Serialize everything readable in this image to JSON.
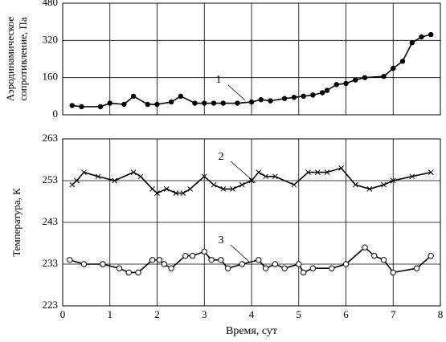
{
  "chart_data": [
    {
      "type": "line",
      "ylabel": [
        "Аэродинамическое",
        "сопротивление, Па"
      ],
      "xlim": [
        0,
        8
      ],
      "ylim": [
        0,
        480
      ],
      "yticks": [
        0,
        160,
        320,
        480
      ],
      "grid": true,
      "series": [
        {
          "name": "1",
          "color": "#000",
          "marker": "dot",
          "x": [
            0.2,
            0.4,
            0.8,
            1.0,
            1.3,
            1.5,
            1.8,
            2.0,
            2.3,
            2.5,
            2.8,
            3.0,
            3.2,
            3.4,
            3.7,
            4.0,
            4.2,
            4.4,
            4.7,
            4.9,
            5.1,
            5.3,
            5.5,
            5.6,
            5.8,
            6.0,
            6.2,
            6.4,
            6.8,
            7.0,
            7.2,
            7.4,
            7.6,
            7.8
          ],
          "values": [
            40,
            35,
            35,
            50,
            45,
            80,
            45,
            45,
            55,
            80,
            50,
            50,
            50,
            50,
            50,
            55,
            65,
            60,
            70,
            75,
            80,
            85,
            95,
            105,
            130,
            135,
            150,
            160,
            165,
            200,
            230,
            310,
            335,
            345
          ]
        }
      ]
    },
    {
      "type": "line",
      "ylabel": "Температура, К",
      "xlabel": "Время, сут",
      "xlim": [
        0,
        8
      ],
      "xticks": [
        0,
        1,
        2,
        3,
        4,
        5,
        6,
        7,
        8
      ],
      "ylim": [
        223,
        263
      ],
      "yticks": [
        223,
        233,
        243,
        253,
        263
      ],
      "grid": true,
      "series": [
        {
          "name": "2",
          "color": "#000",
          "marker": "x",
          "x": [
            0.2,
            0.3,
            0.45,
            0.75,
            1.1,
            1.5,
            1.65,
            1.9,
            2.0,
            2.2,
            2.4,
            2.55,
            2.7,
            3.0,
            3.2,
            3.4,
            3.6,
            3.8,
            4.0,
            4.15,
            4.3,
            4.5,
            4.9,
            5.2,
            5.4,
            5.6,
            5.9,
            6.2,
            6.5,
            6.8,
            7.0,
            7.4,
            7.8
          ],
          "values": [
            252,
            253,
            255,
            254,
            253,
            255,
            254,
            251,
            250,
            251,
            250,
            250,
            251,
            254,
            252,
            251,
            251,
            252,
            253,
            255,
            254,
            254,
            252,
            255,
            255,
            255,
            256,
            252,
            251,
            252,
            253,
            254,
            255
          ]
        },
        {
          "name": "3",
          "color": "#000",
          "marker": "circle",
          "x": [
            0.15,
            0.45,
            0.85,
            1.2,
            1.4,
            1.6,
            1.9,
            2.05,
            2.15,
            2.3,
            2.6,
            2.75,
            3.0,
            3.15,
            3.35,
            3.5,
            3.8,
            4.15,
            4.3,
            4.5,
            4.7,
            5.0,
            5.1,
            5.3,
            5.7,
            6.0,
            6.4,
            6.6,
            6.8,
            7.0,
            7.5,
            7.8
          ],
          "values": [
            234,
            233,
            233,
            232,
            231,
            231,
            234,
            234,
            233,
            232,
            235,
            235,
            236,
            234,
            234,
            232,
            233,
            234,
            232,
            233,
            232,
            233,
            231,
            232,
            232,
            233,
            237,
            235,
            234,
            231,
            232,
            235
          ]
        }
      ]
    }
  ]
}
